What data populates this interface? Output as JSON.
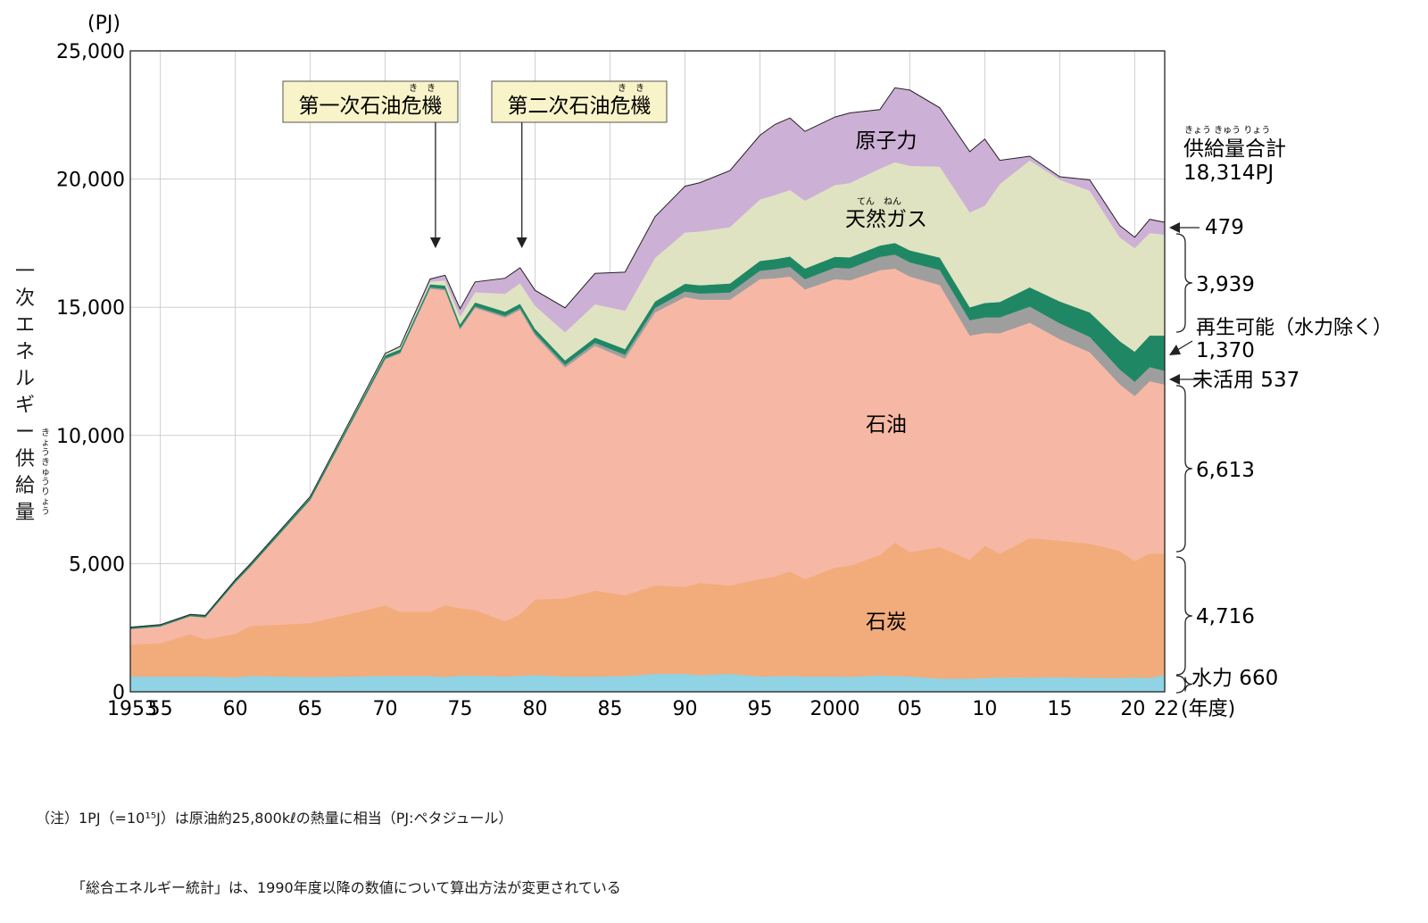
{
  "chart_data": {
    "type": "area",
    "unit_label": "(PJ)",
    "ylabel": "一次エネルギー供給量",
    "ylabel_ruby": "きょうきゅうりょう",
    "ylim": [
      0,
      25000
    ],
    "yticks": [
      0,
      5000,
      10000,
      15000,
      20000,
      25000
    ],
    "ytick_labels": [
      "0",
      "5,000",
      "10,000",
      "15,000",
      "20,000",
      "25,000"
    ],
    "xlim": [
      1953,
      2022
    ],
    "xticks": [
      1953,
      1955,
      1960,
      1965,
      1970,
      1975,
      1980,
      1985,
      1990,
      1995,
      2000,
      2005,
      2010,
      2015,
      2020,
      2022
    ],
    "xtick_labels": [
      "1953",
      "55",
      "60",
      "65",
      "70",
      "75",
      "80",
      "85",
      "90",
      "95",
      "2000",
      "05",
      "10",
      "15",
      "20",
      "22"
    ],
    "xunit": "(年度)",
    "grid": true,
    "x": [
      1953,
      1955,
      1957,
      1958,
      1960,
      1961,
      1965,
      1970,
      1971,
      1973,
      1974,
      1975,
      1976,
      1978,
      1979,
      1980,
      1982,
      1984,
      1986,
      1988,
      1990,
      1991,
      1993,
      1995,
      1996,
      1997,
      1998,
      2000,
      2001,
      2003,
      2004,
      2005,
      2007,
      2009,
      2010,
      2011,
      2013,
      2015,
      2017,
      2019,
      2020,
      2021,
      2022
    ],
    "series": [
      {
        "name": "水力",
        "color": "#8fd3e4",
        "values": [
          600,
          600,
          600,
          600,
          560,
          620,
          580,
          620,
          620,
          620,
          580,
          630,
          630,
          600,
          630,
          650,
          600,
          600,
          620,
          700,
          700,
          650,
          700,
          600,
          610,
          620,
          600,
          600,
          590,
          640,
          620,
          600,
          520,
          520,
          540,
          560,
          560,
          570,
          550,
          540,
          560,
          540,
          660
        ]
      },
      {
        "name": "石炭",
        "color": "#f2ac7b",
        "values": [
          1250,
          1300,
          1650,
          1450,
          1700,
          1950,
          2100,
          2750,
          2500,
          2500,
          2800,
          2630,
          2570,
          2150,
          2400,
          2950,
          3050,
          3350,
          3150,
          3450,
          3400,
          3600,
          3450,
          3800,
          3890,
          4080,
          3800,
          4250,
          4330,
          4700,
          5200,
          4850,
          5130,
          4630,
          5160,
          4830,
          5440,
          5330,
          5230,
          4960,
          4540,
          4860,
          4716
        ]
      },
      {
        "name": "石油",
        "color": "#f6b8a5",
        "values": [
          600,
          650,
          700,
          850,
          2000,
          2300,
          4800,
          9600,
          10080,
          12610,
          12280,
          10880,
          11780,
          11850,
          11870,
          10300,
          9000,
          9550,
          9230,
          10650,
          11300,
          11050,
          11150,
          11700,
          11630,
          11500,
          11300,
          11250,
          11130,
          11110,
          10690,
          10750,
          10220,
          8750,
          8300,
          8600,
          8400,
          7860,
          7470,
          6500,
          6440,
          6720,
          6613
        ]
      },
      {
        "name": "未活用",
        "color": "#9e9e9e",
        "values": [
          10,
          10,
          10,
          10,
          20,
          20,
          20,
          40,
          40,
          50,
          60,
          60,
          60,
          70,
          80,
          90,
          100,
          120,
          150,
          180,
          220,
          240,
          280,
          330,
          360,
          380,
          400,
          450,
          470,
          520,
          550,
          560,
          590,
          600,
          610,
          620,
          630,
          620,
          600,
          580,
          560,
          550,
          537
        ]
      },
      {
        "name": "再生可能(水力除く)",
        "color": "#1f8764",
        "values": [
          60,
          60,
          60,
          70,
          80,
          90,
          90,
          120,
          120,
          120,
          130,
          140,
          150,
          160,
          160,
          170,
          180,
          200,
          220,
          250,
          300,
          320,
          350,
          380,
          390,
          400,
          410,
          420,
          430,
          440,
          450,
          460,
          480,
          500,
          560,
          600,
          750,
          850,
          950,
          1100,
          1170,
          1230,
          1370
        ]
      },
      {
        "name": "天然ガス",
        "color": "#dfe3c2",
        "values": [
          0,
          0,
          0,
          0,
          10,
          10,
          30,
          60,
          80,
          100,
          200,
          300,
          400,
          700,
          800,
          900,
          1100,
          1300,
          1500,
          1700,
          2000,
          2100,
          2200,
          2400,
          2500,
          2600,
          2650,
          2800,
          2900,
          3000,
          3150,
          3300,
          3550,
          3700,
          3800,
          4600,
          4950,
          4750,
          4750,
          4050,
          4040,
          4000,
          3939
        ]
      },
      {
        "name": "原子力",
        "color": "#cdb0d6",
        "values": [
          0,
          0,
          0,
          0,
          0,
          0,
          0,
          10,
          30,
          100,
          200,
          300,
          400,
          600,
          600,
          600,
          950,
          1200,
          1500,
          1600,
          1800,
          1900,
          2200,
          2500,
          2750,
          2800,
          2700,
          2650,
          2730,
          2300,
          2900,
          2950,
          2290,
          2370,
          2590,
          920,
          160,
          110,
          420,
          460,
          420,
          530,
          479
        ]
      }
    ],
    "series_labels": [
      "原子力",
      "天然ガス",
      "石油",
      "石炭"
    ],
    "series_label_ruby": {
      "天然ガス": "てん　ねん"
    },
    "annotations": [
      {
        "text": "第一次石油危機",
        "ruby": "き　き",
        "year": 1973
      },
      {
        "text": "第二次石油危機",
        "ruby": "き　き",
        "year": 1979
      }
    ],
    "right_labels": {
      "total_title": "供給量合計",
      "total_ruby": "きょう きゅう りょう",
      "total_value": "18,314PJ",
      "nuclear": "479",
      "gas": "3,939",
      "renewable_name": "再生可能（水力除く）",
      "renewable": "1,370",
      "unused": "未活用 537",
      "oil": "6,613",
      "coal": "4,716",
      "hydro": "水力 660"
    }
  },
  "notes": [
    "（注）1PJ（=10¹⁵J）は原油約25,800kℓの熱量に相当（PJ:ペタジュール）",
    "「総合エネルギー統計」は、1990年度以降の数値について算出方法が変更されている"
  ]
}
